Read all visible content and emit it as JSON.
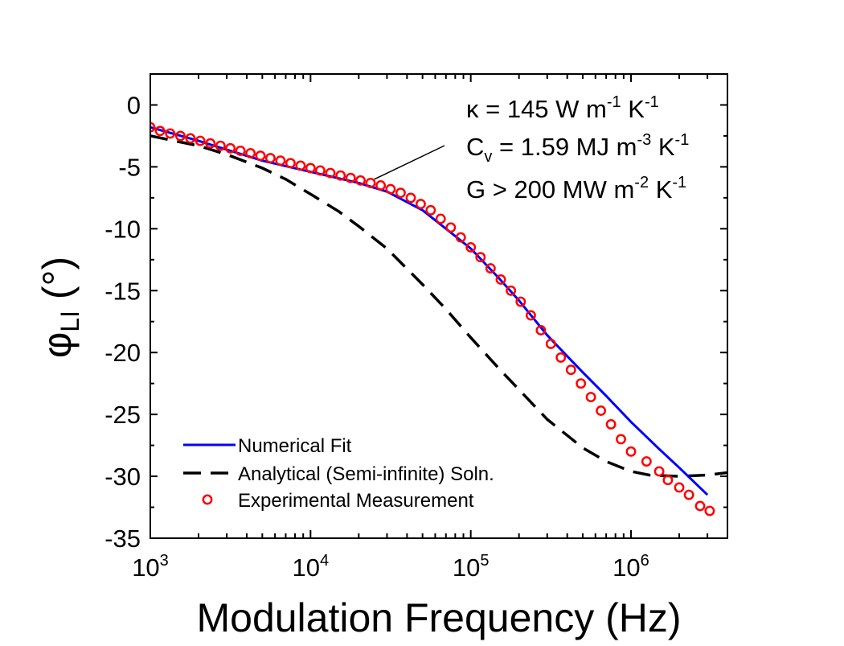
{
  "chart_data": {
    "type": "line",
    "x_scale": "log",
    "xlabel": "Modulation Frequency (Hz)",
    "ylabel": {
      "symbol": "φ",
      "subscript": "LI",
      "unit": "(°)"
    },
    "xlim": [
      1000,
      4000000
    ],
    "ylim": [
      -35,
      2.5
    ],
    "x_ticks": [
      {
        "value": 1000,
        "base": "10",
        "exp": "3"
      },
      {
        "value": 10000,
        "base": "10",
        "exp": "4"
      },
      {
        "value": 100000,
        "base": "10",
        "exp": "5"
      },
      {
        "value": 1000000,
        "base": "10",
        "exp": "6"
      }
    ],
    "y_ticks": [
      {
        "value": 0,
        "label": "0"
      },
      {
        "value": -5,
        "label": "-5"
      },
      {
        "value": -10,
        "label": "-10"
      },
      {
        "value": -15,
        "label": "-15"
      },
      {
        "value": -20,
        "label": "-20"
      },
      {
        "value": -25,
        "label": "-25"
      },
      {
        "value": -30,
        "label": "-30"
      },
      {
        "value": -35,
        "label": "-35"
      }
    ],
    "series": [
      {
        "name": "Numerical Fit",
        "style": "solid",
        "color": "#0000ff",
        "x": [
          1000,
          2000,
          5000,
          10000,
          20000,
          30000,
          50000,
          70000,
          100000,
          150000,
          200000,
          300000,
          400000,
          500000,
          700000,
          1000000,
          1500000,
          2000000,
          3000000
        ],
        "y": [
          -1.8,
          -2.9,
          -4.5,
          -5.4,
          -6.3,
          -7.0,
          -8.5,
          -10.0,
          -11.6,
          -14.0,
          -15.8,
          -18.6,
          -20.3,
          -21.6,
          -23.5,
          -25.6,
          -27.8,
          -29.3,
          -31.5
        ]
      },
      {
        "name": "Analytical (Semi-infinite) Soln.",
        "style": "dashed",
        "color": "#000000",
        "x": [
          1000,
          2000,
          3000,
          5000,
          7000,
          10000,
          15000,
          20000,
          30000,
          50000,
          70000,
          100000,
          150000,
          200000,
          300000,
          500000,
          700000,
          1000000,
          1300000,
          2000000,
          3000000,
          4000000
        ],
        "y": [
          -2.5,
          -3.3,
          -4.0,
          -5.1,
          -6.0,
          -7.2,
          -8.6,
          -9.8,
          -11.6,
          -14.5,
          -16.5,
          -18.8,
          -21.3,
          -23.0,
          -25.4,
          -27.7,
          -28.8,
          -29.6,
          -29.9,
          -30.0,
          -29.9,
          -29.7
        ]
      },
      {
        "name": "Experimental Measurement",
        "style": "markers",
        "color": "#ff0000",
        "x": [
          1000,
          1150,
          1330,
          1540,
          1780,
          2050,
          2370,
          2740,
          3160,
          3650,
          4220,
          4870,
          5620,
          6490,
          7500,
          8660,
          10000,
          11500,
          13300,
          15400,
          17800,
          20500,
          23700,
          27400,
          31600,
          36500,
          42200,
          48700,
          56200,
          64900,
          75000,
          86600,
          100000,
          115000,
          133000,
          154000,
          178000,
          205000,
          237000,
          274000,
          316000,
          365000,
          422000,
          487000,
          562000,
          649000,
          750000,
          866000,
          1000000,
          1250000,
          1500000,
          1700000,
          2000000,
          2300000,
          2700000,
          3100000
        ],
        "y": [
          -1.8,
          -2.1,
          -2.3,
          -2.5,
          -2.7,
          -2.9,
          -3.1,
          -3.3,
          -3.5,
          -3.7,
          -3.9,
          -4.1,
          -4.3,
          -4.5,
          -4.7,
          -4.9,
          -5.1,
          -5.3,
          -5.5,
          -5.7,
          -5.9,
          -6.1,
          -6.3,
          -6.5,
          -6.8,
          -7.1,
          -7.5,
          -8.0,
          -8.5,
          -9.2,
          -9.9,
          -10.7,
          -11.5,
          -12.3,
          -13.2,
          -14.1,
          -15.0,
          -15.9,
          -17.0,
          -18.2,
          -19.3,
          -20.4,
          -21.4,
          -22.5,
          -23.6,
          -24.7,
          -25.8,
          -27.0,
          -28.0,
          -28.8,
          -29.6,
          -30.3,
          -30.9,
          -31.5,
          -32.4,
          -32.8
        ]
      }
    ],
    "annotation": {
      "lines": [
        {
          "parts": [
            {
              "t": "κ = 145 W m"
            },
            {
              "t": "-1",
              "sup": true
            },
            {
              "t": " K"
            },
            {
              "t": "-1",
              "sup": true
            }
          ]
        },
        {
          "parts": [
            {
              "t": "C"
            },
            {
              "t": "v",
              "sub": true
            },
            {
              "t": " = 1.59 MJ m"
            },
            {
              "t": "-3",
              "sup": true
            },
            {
              "t": " K"
            },
            {
              "t": "-1",
              "sup": true
            }
          ]
        },
        {
          "parts": [
            {
              "t": "G > 200 MW m"
            },
            {
              "t": "-2",
              "sup": true
            },
            {
              "t": " K"
            },
            {
              "t": "-1",
              "sup": true
            }
          ]
        }
      ],
      "pointer_target": {
        "x": 25000,
        "y": -6.0
      }
    },
    "legend": {
      "position": "bottom-left"
    }
  }
}
